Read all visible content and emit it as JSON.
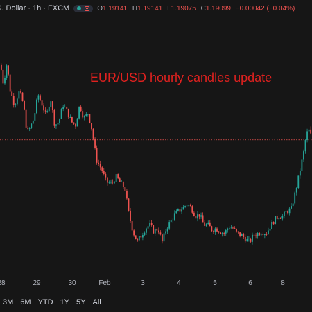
{
  "header": {
    "title": ".S. Dollar · 1h · FXCM",
    "ohlc": [
      {
        "key": "O",
        "value": "1.19141"
      },
      {
        "key": "H",
        "value": "1.19141"
      },
      {
        "key": "L",
        "value": "1.19075"
      },
      {
        "key": "C",
        "value": "1.19099"
      }
    ],
    "change": "−0.00042 (−0.04%)"
  },
  "colors": {
    "up": "#26a69a",
    "down": "#ef5350",
    "background": "#161616",
    "annotation": "#e0211f"
  },
  "chart_data": {
    "type": "candlestick",
    "title": "",
    "annotation": "EUR/USD hourly candles update",
    "x_tick_labels": [
      "28",
      "29",
      "30",
      "Feb",
      "3",
      "4",
      "5",
      "6",
      "8"
    ],
    "grid": false,
    "current_price_line": true,
    "close_path": [
      [
        0,
        0.85
      ],
      [
        4,
        0.74
      ],
      [
        9,
        0.86
      ],
      [
        14,
        0.7
      ],
      [
        20,
        0.62
      ],
      [
        27,
        0.7
      ],
      [
        33,
        0.62
      ],
      [
        38,
        0.46
      ],
      [
        42,
        0.48
      ],
      [
        48,
        0.54
      ],
      [
        54,
        0.68
      ],
      [
        60,
        0.62
      ],
      [
        66,
        0.55
      ],
      [
        72,
        0.66
      ],
      [
        78,
        0.5
      ],
      [
        84,
        0.52
      ],
      [
        90,
        0.62
      ],
      [
        96,
        0.58
      ],
      [
        102,
        0.52
      ],
      [
        108,
        0.5
      ],
      [
        114,
        0.62
      ],
      [
        120,
        0.54
      ],
      [
        126,
        0.57
      ],
      [
        132,
        0.47
      ],
      [
        138,
        0.3
      ],
      [
        146,
        0.24
      ],
      [
        152,
        0.17
      ],
      [
        160,
        0.16
      ],
      [
        167,
        0.2
      ],
      [
        173,
        0.16
      ],
      [
        179,
        0.14
      ],
      [
        185,
        -0.02
      ],
      [
        191,
        -0.12
      ],
      [
        197,
        -0.18
      ],
      [
        203,
        -0.14
      ],
      [
        209,
        -0.1
      ],
      [
        215,
        -0.08
      ],
      [
        221,
        -0.12
      ],
      [
        227,
        -0.1
      ],
      [
        233,
        -0.18
      ],
      [
        239,
        -0.1
      ],
      [
        245,
        -0.06
      ],
      [
        251,
        -0.02
      ],
      [
        257,
        0.0
      ],
      [
        263,
        0.02
      ],
      [
        269,
        0.04
      ],
      [
        275,
        0.02
      ],
      [
        281,
        -0.03
      ],
      [
        287,
        -0.02
      ],
      [
        293,
        -0.08
      ],
      [
        299,
        -0.08
      ],
      [
        305,
        -0.11
      ],
      [
        311,
        -0.1
      ],
      [
        317,
        -0.12
      ],
      [
        323,
        -0.13
      ],
      [
        329,
        -0.09
      ],
      [
        335,
        -0.1
      ],
      [
        341,
        -0.13
      ],
      [
        347,
        -0.14
      ],
      [
        353,
        -0.16
      ],
      [
        359,
        -0.18
      ],
      [
        365,
        -0.14
      ],
      [
        371,
        -0.13
      ],
      [
        377,
        -0.12
      ],
      [
        383,
        -0.13
      ],
      [
        389,
        -0.09
      ],
      [
        395,
        -0.05
      ],
      [
        401,
        -0.03
      ],
      [
        407,
        -0.03
      ],
      [
        413,
        0.0
      ],
      [
        419,
        0.01
      ],
      [
        425,
        0.11
      ],
      [
        431,
        0.22
      ],
      [
        437,
        0.34
      ],
      [
        441,
        0.45
      ],
      [
        445,
        0.47
      ],
      [
        449,
        0.42
      ]
    ]
  },
  "ranges": [
    "3M",
    "6M",
    "YTD",
    "1Y",
    "5Y",
    "All"
  ]
}
